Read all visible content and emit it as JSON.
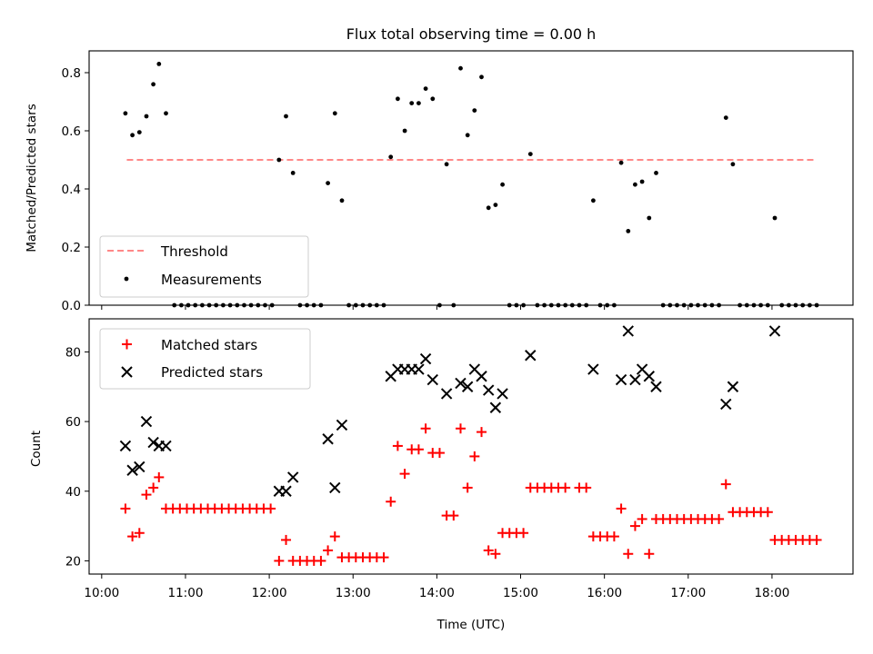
{
  "chart_data": [
    {
      "type": "scatter",
      "title": "Flux total observing time = 0.00 h",
      "ylabel": "Matched/Predicted stars",
      "xlim": [
        "09:51",
        "18:58"
      ],
      "ylim": [
        0,
        0.875
      ],
      "yticks": [
        "0.0",
        "0.2",
        "0.4",
        "0.6",
        "0.8"
      ],
      "legend": {
        "placement": "lower-left",
        "entries": [
          "Threshold",
          "Measurements"
        ]
      },
      "threshold": {
        "name": "Threshold",
        "y": 0.5,
        "x": [
          "10:18",
          "18:30"
        ],
        "color": "#ff7777",
        "style": "dashed"
      },
      "series": [
        {
          "name": "Measurements",
          "color": "#000000",
          "marker": "dot",
          "points": [
            [
              "10:17",
              0.66
            ],
            [
              "10:22",
              0.585
            ],
            [
              "10:27",
              0.595
            ],
            [
              "10:32",
              0.65
            ],
            [
              "10:37",
              0.76
            ],
            [
              "10:41",
              0.83
            ],
            [
              "10:46",
              0.66
            ],
            [
              "10:52",
              0.0
            ],
            [
              "10:57",
              0.0
            ],
            [
              "11:02",
              0.0
            ],
            [
              "11:07",
              0.0
            ],
            [
              "11:12",
              0.0
            ],
            [
              "11:17",
              0.0
            ],
            [
              "11:22",
              0.0
            ],
            [
              "11:27",
              0.0
            ],
            [
              "11:32",
              0.0
            ],
            [
              "11:37",
              0.0
            ],
            [
              "11:42",
              0.0
            ],
            [
              "11:47",
              0.0
            ],
            [
              "11:52",
              0.0
            ],
            [
              "11:57",
              0.0
            ],
            [
              "12:02",
              0.0
            ],
            [
              "12:07",
              0.5
            ],
            [
              "12:12",
              0.65
            ],
            [
              "12:17",
              0.455
            ],
            [
              "12:22",
              0.0
            ],
            [
              "12:27",
              0.0
            ],
            [
              "12:32",
              0.0
            ],
            [
              "12:37",
              0.0
            ],
            [
              "12:42",
              0.42
            ],
            [
              "12:47",
              0.66
            ],
            [
              "12:52",
              0.36
            ],
            [
              "12:57",
              0.0
            ],
            [
              "13:02",
              0.0
            ],
            [
              "13:07",
              0.0
            ],
            [
              "13:12",
              0.0
            ],
            [
              "13:17",
              0.0
            ],
            [
              "13:22",
              0.0
            ],
            [
              "13:27",
              0.51
            ],
            [
              "13:32",
              0.71
            ],
            [
              "13:37",
              0.6
            ],
            [
              "13:42",
              0.695
            ],
            [
              "13:47",
              0.695
            ],
            [
              "13:52",
              0.745
            ],
            [
              "13:57",
              0.71
            ],
            [
              "14:02",
              0.0
            ],
            [
              "14:07",
              0.485
            ],
            [
              "14:12",
              0.0
            ],
            [
              "14:17",
              0.815
            ],
            [
              "14:22",
              0.585
            ],
            [
              "14:27",
              0.67
            ],
            [
              "14:32",
              0.785
            ],
            [
              "14:37",
              0.335
            ],
            [
              "14:42",
              0.345
            ],
            [
              "14:47",
              0.415
            ],
            [
              "14:52",
              0.0
            ],
            [
              "14:57",
              0.0
            ],
            [
              "15:02",
              0.0
            ],
            [
              "15:07",
              0.52
            ],
            [
              "15:12",
              0.0
            ],
            [
              "15:17",
              0.0
            ],
            [
              "15:22",
              0.0
            ],
            [
              "15:27",
              0.0
            ],
            [
              "15:32",
              0.0
            ],
            [
              "15:37",
              0.0
            ],
            [
              "15:42",
              0.0
            ],
            [
              "15:47",
              0.0
            ],
            [
              "15:52",
              0.36
            ],
            [
              "15:57",
              0.0
            ],
            [
              "16:02",
              0.0
            ],
            [
              "16:07",
              0.0
            ],
            [
              "16:12",
              0.49
            ],
            [
              "16:17",
              0.255
            ],
            [
              "16:22",
              0.415
            ],
            [
              "16:27",
              0.425
            ],
            [
              "16:32",
              0.3
            ],
            [
              "16:37",
              0.455
            ],
            [
              "16:42",
              0.0
            ],
            [
              "16:47",
              0.0
            ],
            [
              "16:52",
              0.0
            ],
            [
              "16:57",
              0.0
            ],
            [
              "17:02",
              0.0
            ],
            [
              "17:07",
              0.0
            ],
            [
              "17:12",
              0.0
            ],
            [
              "17:17",
              0.0
            ],
            [
              "17:22",
              0.0
            ],
            [
              "17:27",
              0.645
            ],
            [
              "17:32",
              0.485
            ],
            [
              "17:37",
              0.0
            ],
            [
              "17:42",
              0.0
            ],
            [
              "17:47",
              0.0
            ],
            [
              "17:52",
              0.0
            ],
            [
              "17:57",
              0.0
            ],
            [
              "18:02",
              0.3
            ],
            [
              "18:07",
              0.0
            ],
            [
              "18:12",
              0.0
            ],
            [
              "18:17",
              0.0
            ],
            [
              "18:22",
              0.0
            ],
            [
              "18:27",
              0.0
            ],
            [
              "18:32",
              0.0
            ]
          ]
        }
      ]
    },
    {
      "type": "scatter",
      "xlabel": "Time (UTC)",
      "ylabel": "Count",
      "xlim": [
        "09:51",
        "18:58"
      ],
      "ylim": [
        16.2,
        89.5
      ],
      "yticks": [
        "20",
        "40",
        "60",
        "80"
      ],
      "xticks": [
        "10:00",
        "11:00",
        "12:00",
        "13:00",
        "14:00",
        "15:00",
        "16:00",
        "17:00",
        "18:00"
      ],
      "legend": {
        "placement": "upper-left",
        "entries": [
          "Matched stars",
          "Predicted stars"
        ]
      },
      "series": [
        {
          "name": "Matched stars",
          "color": "#ff0000",
          "marker": "plus",
          "points": [
            [
              "10:17",
              35
            ],
            [
              "10:22",
              27
            ],
            [
              "10:27",
              28
            ],
            [
              "10:32",
              39
            ],
            [
              "10:37",
              41
            ],
            [
              "10:41",
              44
            ],
            [
              "10:46",
              35
            ],
            [
              "10:51",
              35
            ],
            [
              "10:56",
              35
            ],
            [
              "11:01",
              35
            ],
            [
              "11:06",
              35
            ],
            [
              "11:11",
              35
            ],
            [
              "11:16",
              35
            ],
            [
              "11:21",
              35
            ],
            [
              "11:26",
              35
            ],
            [
              "11:31",
              35
            ],
            [
              "11:36",
              35
            ],
            [
              "11:41",
              35
            ],
            [
              "11:46",
              35
            ],
            [
              "11:51",
              35
            ],
            [
              "11:56",
              35
            ],
            [
              "12:01",
              35
            ],
            [
              "12:07",
              20
            ],
            [
              "12:12",
              26
            ],
            [
              "12:17",
              20
            ],
            [
              "12:22",
              20
            ],
            [
              "12:27",
              20
            ],
            [
              "12:32",
              20
            ],
            [
              "12:37",
              20
            ],
            [
              "12:42",
              23
            ],
            [
              "12:47",
              27
            ],
            [
              "12:52",
              21
            ],
            [
              "12:57",
              21
            ],
            [
              "13:02",
              21
            ],
            [
              "13:07",
              21
            ],
            [
              "13:12",
              21
            ],
            [
              "13:17",
              21
            ],
            [
              "13:22",
              21
            ],
            [
              "13:27",
              37
            ],
            [
              "13:32",
              53
            ],
            [
              "13:37",
              45
            ],
            [
              "13:42",
              52
            ],
            [
              "13:47",
              52
            ],
            [
              "13:52",
              58
            ],
            [
              "13:57",
              51
            ],
            [
              "14:02",
              51
            ],
            [
              "14:07",
              33
            ],
            [
              "14:12",
              33
            ],
            [
              "14:17",
              58
            ],
            [
              "14:22",
              41
            ],
            [
              "14:27",
              50
            ],
            [
              "14:32",
              57
            ],
            [
              "14:37",
              23
            ],
            [
              "14:42",
              22
            ],
            [
              "14:47",
              28
            ],
            [
              "14:52",
              28
            ],
            [
              "14:57",
              28
            ],
            [
              "15:02",
              28
            ],
            [
              "15:07",
              41
            ],
            [
              "15:12",
              41
            ],
            [
              "15:17",
              41
            ],
            [
              "15:22",
              41
            ],
            [
              "15:27",
              41
            ],
            [
              "15:32",
              41
            ],
            [
              "15:42",
              41
            ],
            [
              "15:47",
              41
            ],
            [
              "15:52",
              27
            ],
            [
              "15:57",
              27
            ],
            [
              "16:02",
              27
            ],
            [
              "16:07",
              27
            ],
            [
              "16:12",
              35
            ],
            [
              "16:17",
              22
            ],
            [
              "16:22",
              30
            ],
            [
              "16:27",
              32
            ],
            [
              "16:32",
              22
            ],
            [
              "16:37",
              32
            ],
            [
              "16:42",
              32
            ],
            [
              "16:47",
              32
            ],
            [
              "16:52",
              32
            ],
            [
              "16:57",
              32
            ],
            [
              "17:02",
              32
            ],
            [
              "17:07",
              32
            ],
            [
              "17:12",
              32
            ],
            [
              "17:17",
              32
            ],
            [
              "17:22",
              32
            ],
            [
              "17:27",
              42
            ],
            [
              "17:32",
              34
            ],
            [
              "17:37",
              34
            ],
            [
              "17:42",
              34
            ],
            [
              "17:47",
              34
            ],
            [
              "17:52",
              34
            ],
            [
              "17:57",
              34
            ],
            [
              "18:02",
              26
            ],
            [
              "18:07",
              26
            ],
            [
              "18:12",
              26
            ],
            [
              "18:17",
              26
            ],
            [
              "18:22",
              26
            ],
            [
              "18:27",
              26
            ],
            [
              "18:32",
              26
            ]
          ]
        },
        {
          "name": "Predicted stars",
          "color": "#000000",
          "marker": "x",
          "points": [
            [
              "10:17",
              53
            ],
            [
              "10:22",
              46
            ],
            [
              "10:27",
              47
            ],
            [
              "10:32",
              60
            ],
            [
              "10:37",
              54
            ],
            [
              "10:41",
              53
            ],
            [
              "10:46",
              53
            ],
            [
              "12:07",
              40
            ],
            [
              "12:12",
              40
            ],
            [
              "12:17",
              44
            ],
            [
              "12:42",
              55
            ],
            [
              "12:47",
              41
            ],
            [
              "12:52",
              59
            ],
            [
              "13:27",
              73
            ],
            [
              "13:32",
              75
            ],
            [
              "13:37",
              75
            ],
            [
              "13:42",
              75
            ],
            [
              "13:47",
              75
            ],
            [
              "13:52",
              78
            ],
            [
              "13:57",
              72
            ],
            [
              "14:07",
              68
            ],
            [
              "14:17",
              71
            ],
            [
              "14:22",
              70
            ],
            [
              "14:27",
              75
            ],
            [
              "14:32",
              73
            ],
            [
              "14:37",
              69
            ],
            [
              "14:42",
              64
            ],
            [
              "14:47",
              68
            ],
            [
              "15:07",
              79
            ],
            [
              "15:52",
              75
            ],
            [
              "16:12",
              72
            ],
            [
              "16:17",
              86
            ],
            [
              "16:22",
              72
            ],
            [
              "16:27",
              75
            ],
            [
              "16:32",
              73
            ],
            [
              "16:37",
              70
            ],
            [
              "17:27",
              65
            ],
            [
              "17:32",
              70
            ],
            [
              "18:02",
              86
            ]
          ]
        }
      ]
    }
  ]
}
